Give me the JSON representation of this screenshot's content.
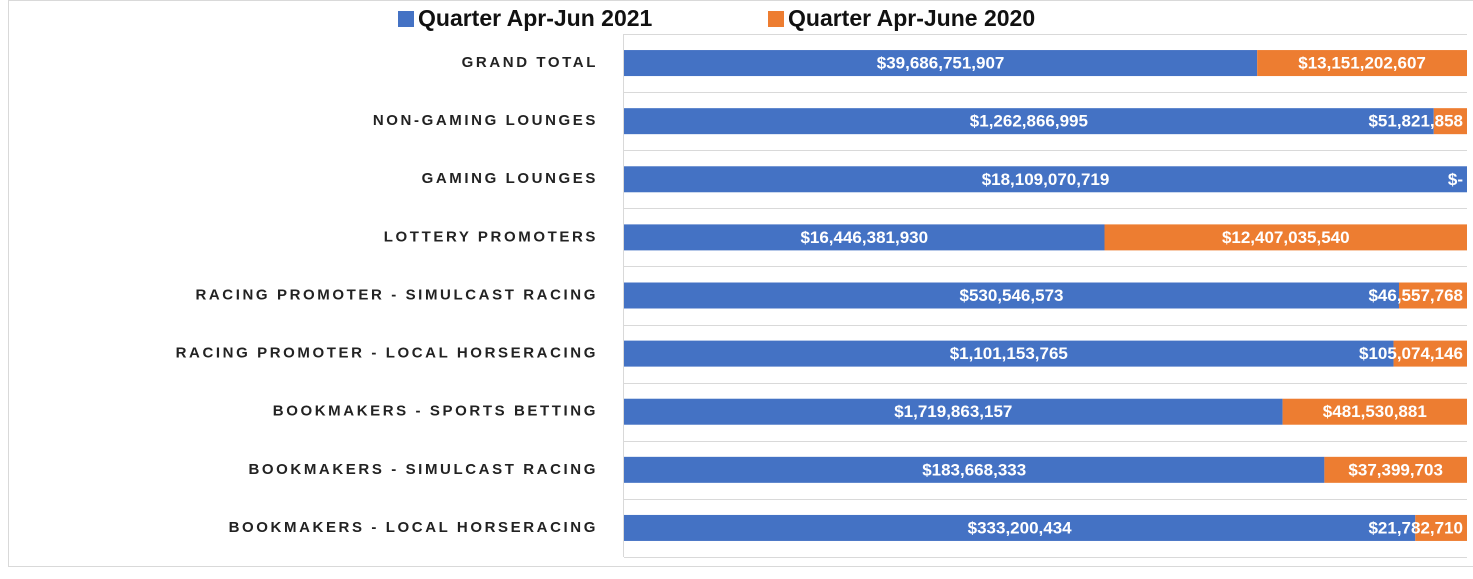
{
  "chart_data": {
    "type": "bar",
    "orientation": "horizontal",
    "stacking": "percent",
    "legend": "top",
    "categories": [
      "GRAND TOTAL",
      "NON-GAMING LOUNGES",
      "GAMING LOUNGES",
      "LOTTERY PROMOTERS",
      "RACING PROMOTER - SIMULCAST RACING",
      "RACING PROMOTER - LOCAL HORSERACING",
      "BOOKMAKERS - SPORTS BETTING",
      "BOOKMAKERS - SIMULCAST RACING",
      "BOOKMAKERS - LOCAL HORSERACING"
    ],
    "series": [
      {
        "name": "Quarter Apr-Jun 2021",
        "color": "#4472c4",
        "values": [
          39686751907,
          1262866995,
          18109070719,
          16446381930,
          530546573,
          1101153765,
          1719863157,
          183668333,
          333200434
        ],
        "value_labels": [
          "$39,686,751,907",
          "$1,262,866,995",
          "$18,109,070,719",
          "$16,446,381,930",
          "$530,546,573",
          "$1,101,153,765",
          "$1,719,863,157",
          "$183,668,333",
          "$333,200,434"
        ]
      },
      {
        "name": "Quarter Apr-June 2020",
        "color": "#ed7d31",
        "values": [
          13151202607,
          51821858,
          0,
          12407035540,
          46557768,
          105074146,
          481530881,
          37399703,
          21782710
        ],
        "value_labels": [
          "$13,151,202,607",
          "$51,821,858",
          "$-",
          "$12,407,035,540",
          "$46,557,768",
          "$105,074,146",
          "$481,530,881",
          "$37,399,703",
          "$21,782,710"
        ]
      }
    ]
  }
}
